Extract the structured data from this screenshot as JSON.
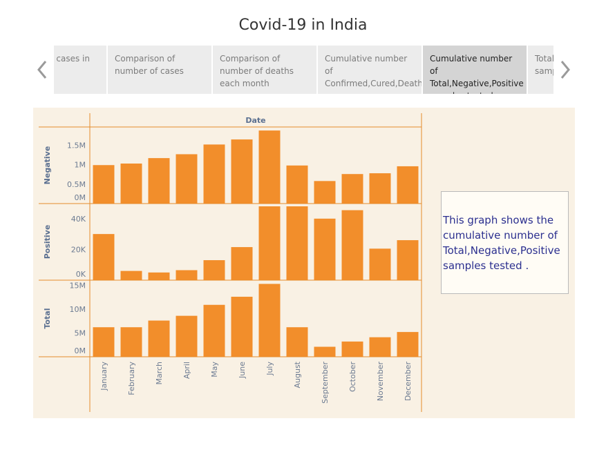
{
  "page": {
    "title": "Covid-19 in India"
  },
  "tabs": [
    {
      "label": "Number of cases in India"
    },
    {
      "label": "Comparison of number of cases"
    },
    {
      "label": "Comparison of number of deaths each month"
    },
    {
      "label": "Cumulative number of Confirmed,Cured,Death cases."
    },
    {
      "label": "Cumulative number of Total,Negative,Positive samples tested ."
    },
    {
      "label": "Total and daily samples"
    }
  ],
  "active_tab": 4,
  "description": "This graph shows the cumulative number of Total,Negative,Positive samples tested .",
  "colors": {
    "bar": "#f28e2b",
    "axis": "#e58a2a",
    "panel": "#f9f1e4"
  },
  "icons": {
    "prev": "chevron-left-icon",
    "next": "chevron-right-icon"
  },
  "chart_data": {
    "type": "bar",
    "column_header": "Date",
    "categories": [
      "January",
      "February",
      "March",
      "April",
      "May",
      "June",
      "July",
      "August",
      "September",
      "October",
      "November",
      "December"
    ],
    "series": [
      {
        "name": "Negative",
        "ylim": [
          0,
          1900000
        ],
        "ticks": [
          {
            "v": 0,
            "label": "0M"
          },
          {
            "v": 500000,
            "label": "0.5M"
          },
          {
            "v": 1000000,
            "label": "1M"
          },
          {
            "v": 1500000,
            "label": "1.5M"
          }
        ],
        "values": [
          990000,
          1030000,
          1170000,
          1270000,
          1520000,
          1650000,
          1880000,
          980000,
          580000,
          760000,
          780000,
          960000
        ]
      },
      {
        "name": "Positive",
        "ylim": [
          0,
          48000
        ],
        "ticks": [
          {
            "v": 0,
            "label": "0K"
          },
          {
            "v": 20000,
            "label": "20K"
          },
          {
            "v": 40000,
            "label": "40K"
          }
        ],
        "values": [
          30000,
          6000,
          5000,
          6500,
          13000,
          21500,
          48500,
          48000,
          40000,
          45500,
          20500,
          26000
        ]
      },
      {
        "name": "Total",
        "ylim": [
          0,
          15500000
        ],
        "ticks": [
          {
            "v": 0,
            "label": "0M"
          },
          {
            "v": 5000000,
            "label": "5M"
          },
          {
            "v": 10000000,
            "label": "10M"
          },
          {
            "v": 15000000,
            "label": "15M"
          }
        ],
        "values": [
          6200000,
          6200000,
          7600000,
          8600000,
          10900000,
          12600000,
          15300000,
          6200000,
          2100000,
          3200000,
          4100000,
          5200000
        ]
      }
    ]
  }
}
